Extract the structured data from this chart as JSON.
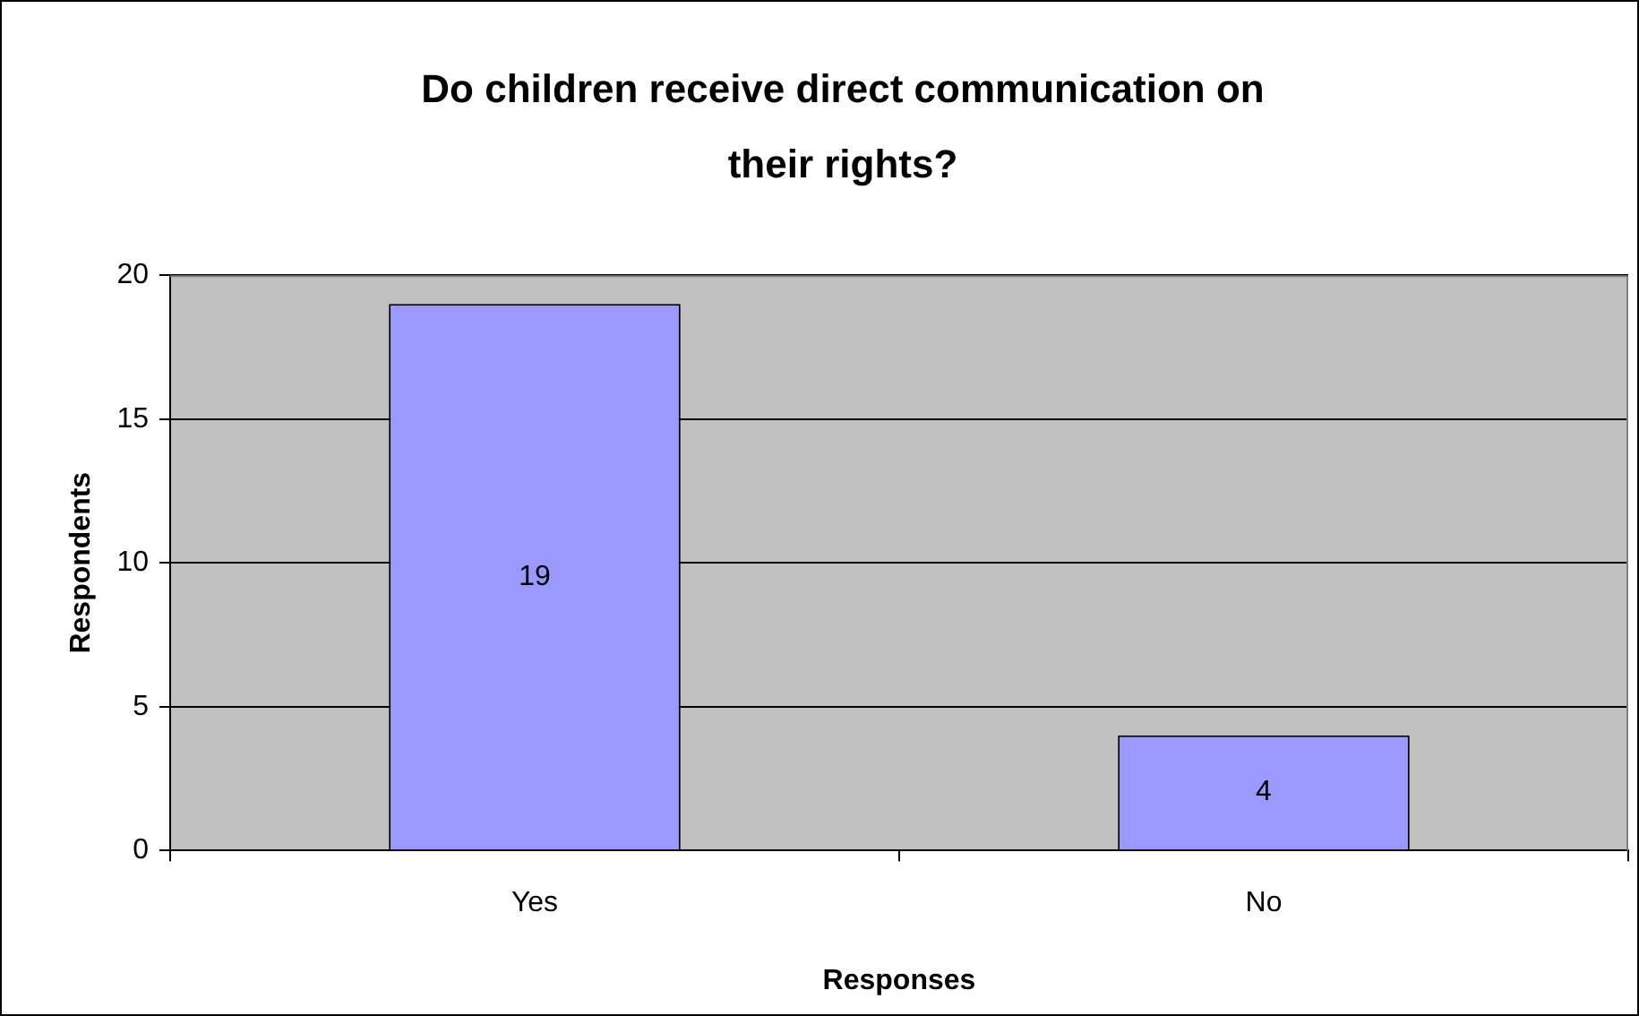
{
  "chart_data": {
    "type": "bar",
    "title": "Do children receive direct communication on their rights?",
    "xlabel": "Responses",
    "ylabel": "Respondents",
    "categories": [
      "Yes",
      "No"
    ],
    "values": [
      19,
      4
    ],
    "color": "#9999ff",
    "ylim": [
      0,
      20
    ],
    "yticks": [
      0,
      5,
      10,
      15,
      20
    ],
    "grid": "y",
    "legend": false,
    "data_labels": true
  }
}
